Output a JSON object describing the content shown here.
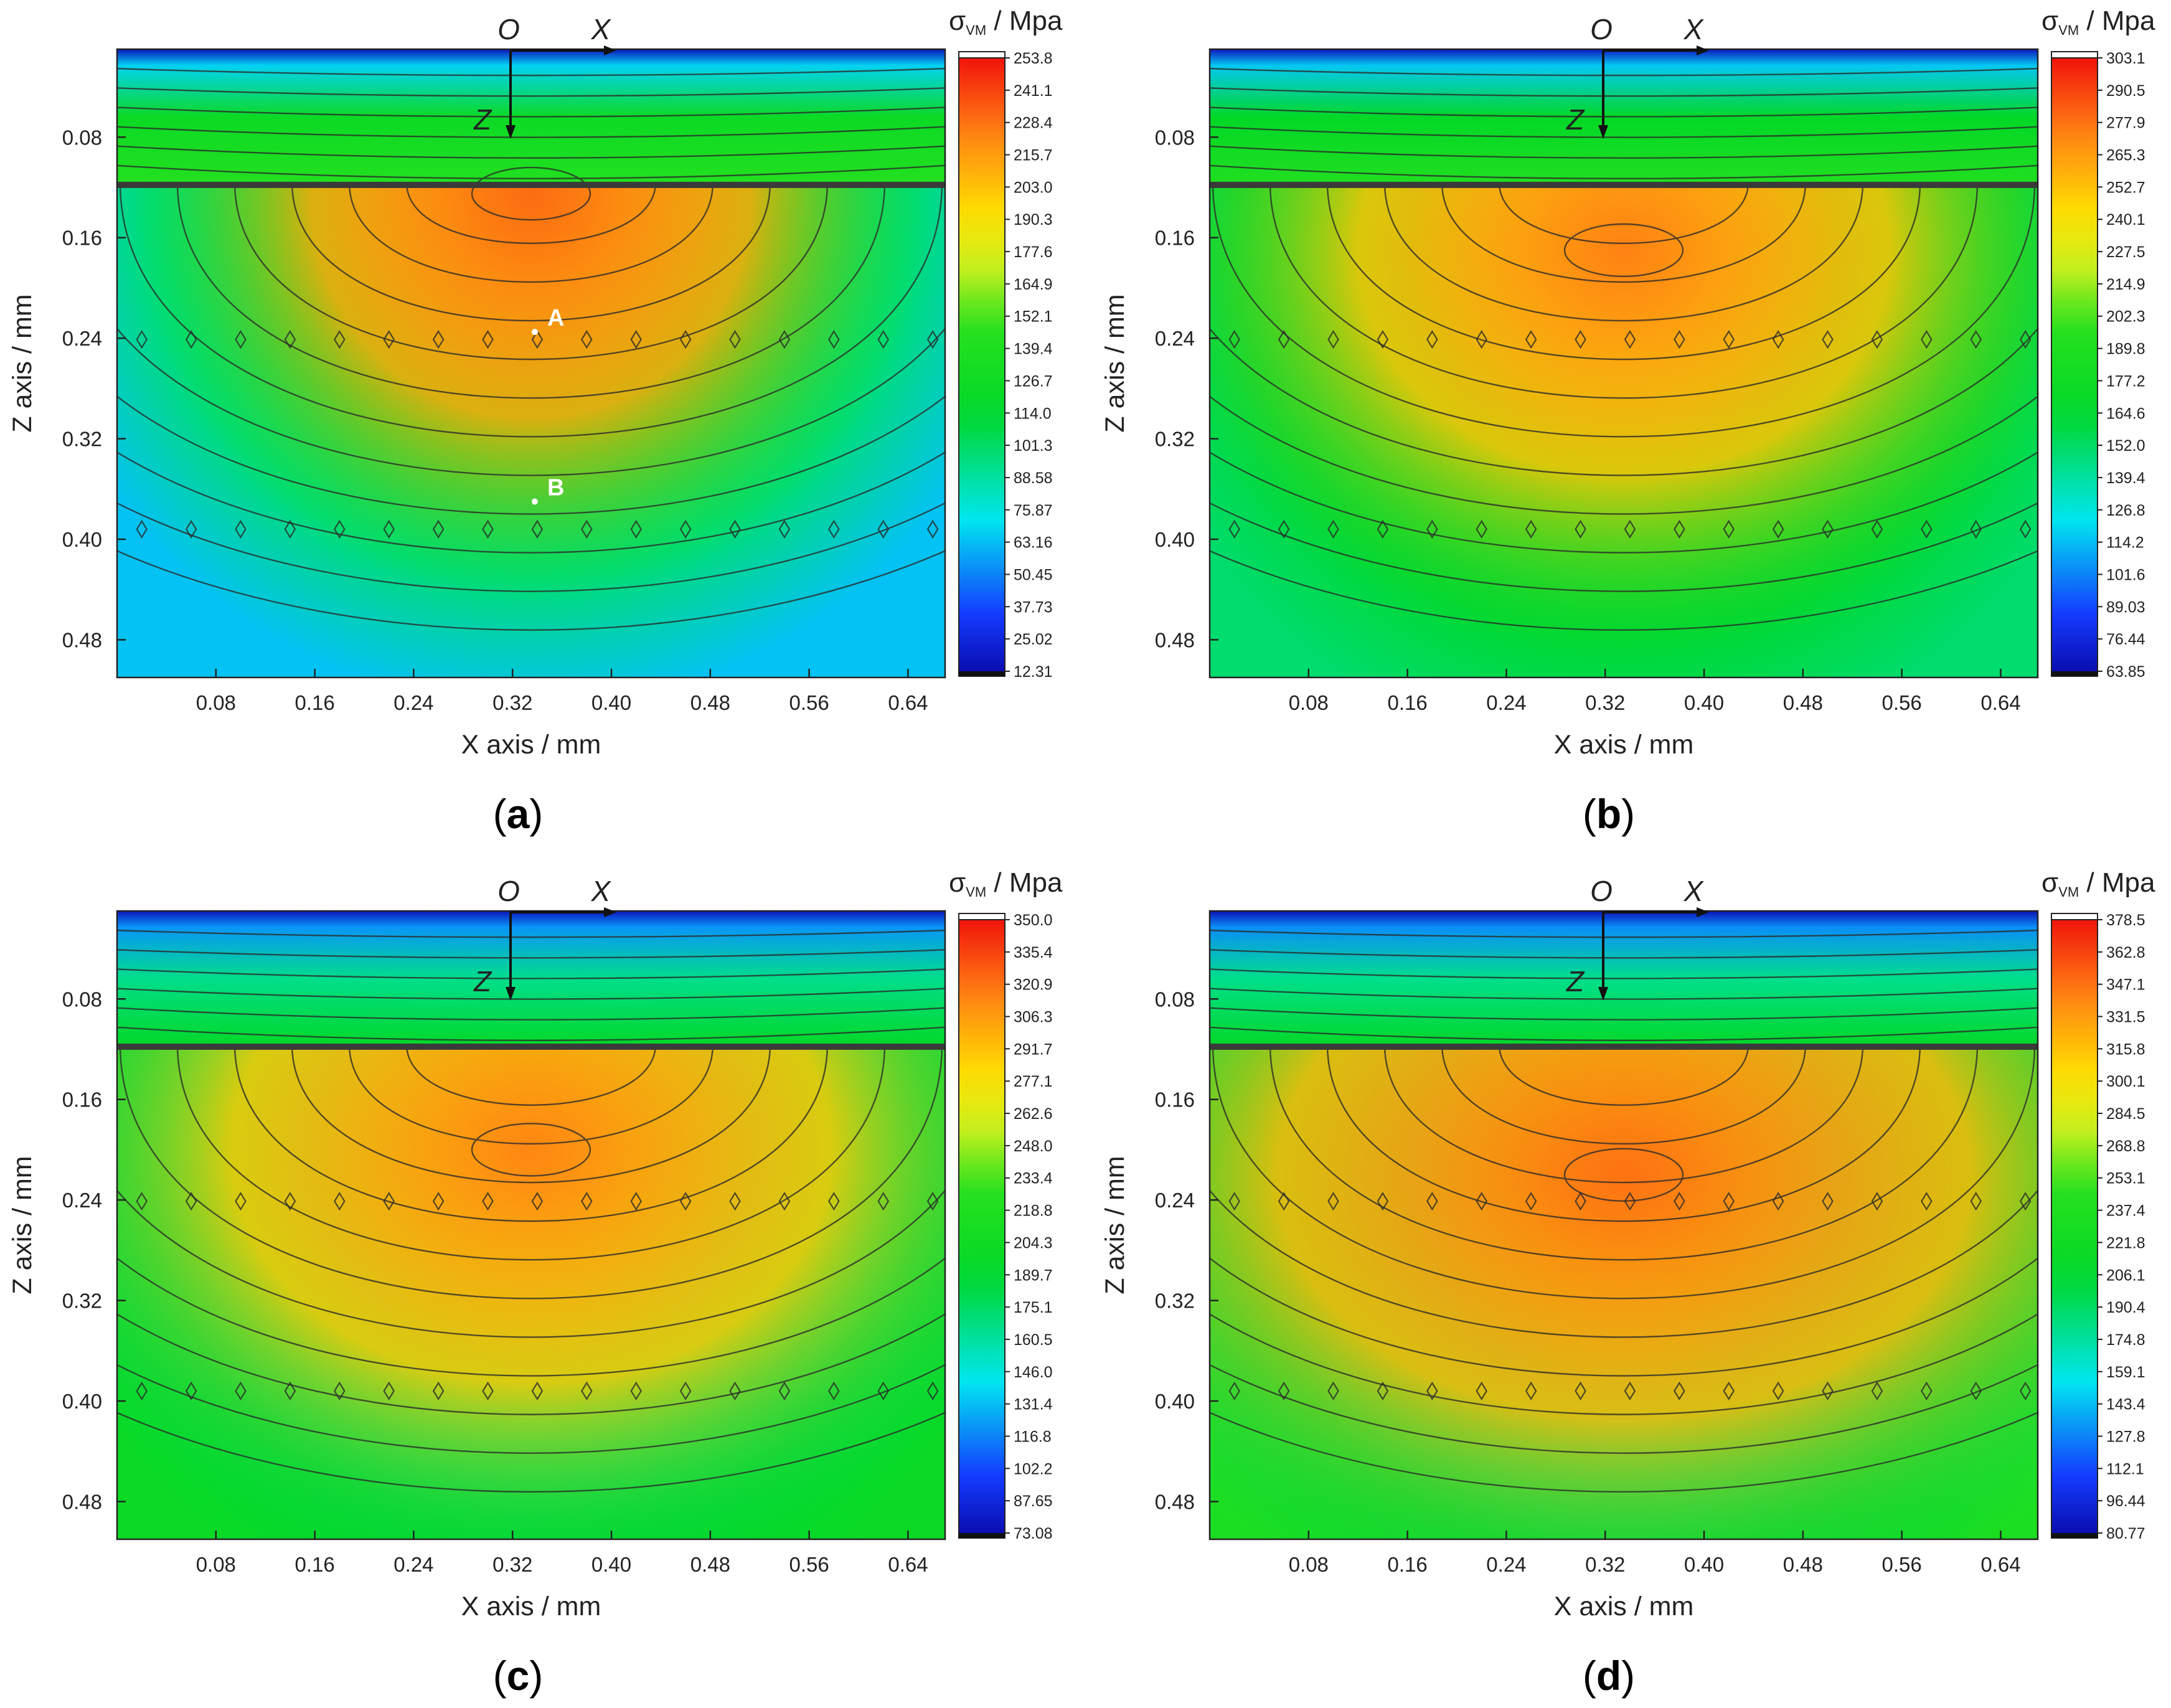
{
  "figure": {
    "panel_tags": [
      "a",
      "b",
      "c",
      "d"
    ]
  },
  "chart_data": [
    {
      "type": "heatmap",
      "panel": "a",
      "title": "",
      "xlabel": "X axis / mm",
      "ylabel": "Z axis / mm",
      "xlim": [
        0,
        0.67
      ],
      "ylim": [
        0.01,
        0.51
      ],
      "x_ticks": [
        "0.08",
        "0.16",
        "0.24",
        "0.32",
        "0.40",
        "0.48",
        "0.56",
        "0.64"
      ],
      "y_ticks": [
        "0.08",
        "0.16",
        "0.24",
        "0.32",
        "0.40",
        "0.48"
      ],
      "colorbar": {
        "title_sym": "σ",
        "title_sub": "VM",
        "title_unit": " / Mpa",
        "min": 12.31,
        "max": 253.8,
        "ticks": [
          "253.8",
          "241.1",
          "228.4",
          "215.7",
          "203.0",
          "190.3",
          "177.6",
          "164.9",
          "152.1",
          "139.4",
          "126.7",
          "114.0",
          "101.3",
          "88.58",
          "75.87",
          "63.16",
          "50.45",
          "37.73",
          "25.02",
          "12.31"
        ]
      },
      "coordinate_axes": {
        "origin": "O",
        "x": "X",
        "z": "Z"
      },
      "points": [
        {
          "label": "A",
          "x": 0.338,
          "z": 0.235
        },
        {
          "label": "B",
          "x": 0.338,
          "z": 0.37
        }
      ],
      "field": {
        "peak_value": 228,
        "peak_x": 0.335,
        "peak_z": 0.125,
        "layer_boundary_z": 0.118,
        "surface_value": 18,
        "corner_value": 65,
        "peak_spread_x": 0.19,
        "peak_spread_z": 0.24,
        "top_band_value": 130
      }
    },
    {
      "type": "heatmap",
      "panel": "b",
      "title": "",
      "xlabel": "X axis / mm",
      "ylabel": "Z axis / mm",
      "xlim": [
        0,
        0.67
      ],
      "ylim": [
        0.01,
        0.51
      ],
      "x_ticks": [
        "0.08",
        "0.16",
        "0.24",
        "0.32",
        "0.40",
        "0.48",
        "0.56",
        "0.64"
      ],
      "y_ticks": [
        "0.08",
        "0.16",
        "0.24",
        "0.32",
        "0.40",
        "0.48"
      ],
      "colorbar": {
        "title_sym": "σ",
        "title_sub": "VM",
        "title_unit": " / Mpa",
        "min": 63.85,
        "max": 303.1,
        "ticks": [
          "303.1",
          "290.5",
          "277.9",
          "265.3",
          "252.7",
          "240.1",
          "227.5",
          "214.9",
          "202.3",
          "189.8",
          "177.2",
          "164.6",
          "152.0",
          "139.4",
          "126.8",
          "114.2",
          "101.6",
          "89.03",
          "76.44",
          "63.85"
        ]
      },
      "coordinate_axes": {
        "origin": "O",
        "x": "X",
        "z": "Z"
      },
      "points": [],
      "field": {
        "peak_value": 272,
        "peak_x": 0.335,
        "peak_z": 0.17,
        "layer_boundary_z": 0.118,
        "surface_value": 70,
        "corner_value": 150,
        "peak_spread_x": 0.23,
        "peak_spread_z": 0.24,
        "top_band_value": 175
      }
    },
    {
      "type": "heatmap",
      "panel": "c",
      "title": "",
      "xlabel": "X axis / mm",
      "ylabel": "Z axis / mm",
      "xlim": [
        0,
        0.67
      ],
      "ylim": [
        0.01,
        0.51
      ],
      "x_ticks": [
        "0.08",
        "0.16",
        "0.24",
        "0.32",
        "0.40",
        "0.48",
        "0.56",
        "0.64"
      ],
      "y_ticks": [
        "0.08",
        "0.16",
        "0.24",
        "0.32",
        "0.40",
        "0.48"
      ],
      "colorbar": {
        "title_sym": "σ",
        "title_sub": "VM",
        "title_unit": " / Mpa",
        "min": 73.08,
        "max": 350.0,
        "ticks": [
          "350.0",
          "335.4",
          "320.9",
          "306.3",
          "291.7",
          "277.1",
          "262.6",
          "248.0",
          "233.4",
          "218.8",
          "204.3",
          "189.7",
          "175.1",
          "160.5",
          "146.0",
          "131.4",
          "116.8",
          "102.2",
          "87.65",
          "73.08"
        ]
      },
      "coordinate_axes": {
        "origin": "O",
        "x": "X",
        "z": "Z"
      },
      "points": [],
      "field": {
        "peak_value": 312,
        "peak_x": 0.335,
        "peak_z": 0.2,
        "layer_boundary_z": 0.118,
        "surface_value": 80,
        "corner_value": 200,
        "peak_spread_x": 0.26,
        "peak_spread_z": 0.25,
        "top_band_value": 175
      }
    },
    {
      "type": "heatmap",
      "panel": "d",
      "title": "",
      "xlabel": "X axis / mm",
      "ylabel": "Z axis / mm",
      "xlim": [
        0,
        0.67
      ],
      "ylim": [
        0.01,
        0.51
      ],
      "x_ticks": [
        "0.08",
        "0.16",
        "0.24",
        "0.32",
        "0.40",
        "0.48",
        "0.56",
        "0.64"
      ],
      "y_ticks": [
        "0.08",
        "0.16",
        "0.24",
        "0.32",
        "0.40",
        "0.48"
      ],
      "colorbar": {
        "title_sym": "σ",
        "title_sub": "VM",
        "title_unit": " / Mpa",
        "min": 80.77,
        "max": 378.5,
        "ticks": [
          "378.5",
          "362.8",
          "347.1",
          "331.5",
          "315.8",
          "300.1",
          "284.5",
          "268.8",
          "253.1",
          "237.4",
          "221.8",
          "206.1",
          "190.4",
          "174.8",
          "159.1",
          "143.4",
          "127.8",
          "112.1",
          "96.44",
          "80.77"
        ]
      },
      "coordinate_axes": {
        "origin": "O",
        "x": "X",
        "z": "Z"
      },
      "points": [],
      "field": {
        "peak_value": 345,
        "peak_x": 0.335,
        "peak_z": 0.22,
        "layer_boundary_z": 0.118,
        "surface_value": 85,
        "corner_value": 235,
        "peak_spread_x": 0.3,
        "peak_spread_z": 0.26,
        "top_band_value": 190
      }
    }
  ]
}
